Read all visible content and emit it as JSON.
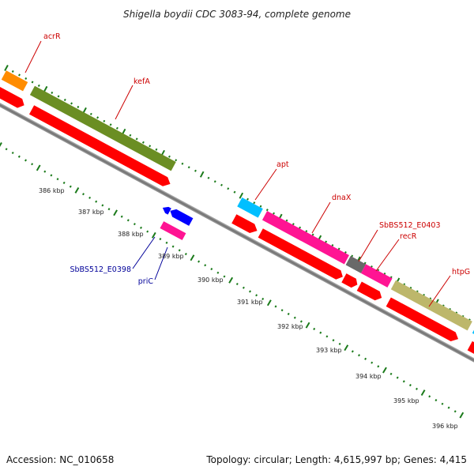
{
  "title": "Shigella boydii CDC 3083-94, complete genome",
  "footer": {
    "accession": "Accession: NC_010658",
    "summary": "Topology: circular; Length: 4,615,997 bp; Genes: 4,415"
  },
  "scale_labels": [
    "386 kbp",
    "387 kbp",
    "388 kbp",
    "389 kbp",
    "390 kbp",
    "391 kbp",
    "392 kbp",
    "393 kbp",
    "394 kbp",
    "395 kbp",
    "396 kbp"
  ],
  "genes_forward": [
    {
      "name": "acrR",
      "color": "#ff8c00"
    },
    {
      "name": "kefA",
      "color": "#6b8e23"
    },
    {
      "name": "apt",
      "color": "#00bfff"
    },
    {
      "name": "dnaX",
      "color": "#ff1493"
    },
    {
      "name": "SbBS512_E0403",
      "color": "#696969"
    },
    {
      "name": "recR",
      "color": "#ff1493"
    },
    {
      "name": "htpG",
      "color": "#bdb76b"
    }
  ],
  "genes_reverse": [
    {
      "name": "SbBS512_E0398",
      "color": "#ff1493"
    },
    {
      "name": "priC",
      "color": "#0000ff"
    }
  ],
  "colors": {
    "cds": "#ff0000",
    "backbone": "#808080",
    "tick": "#1a7a1a",
    "label_forward": "#cc0000",
    "label_reverse": "#000099"
  }
}
